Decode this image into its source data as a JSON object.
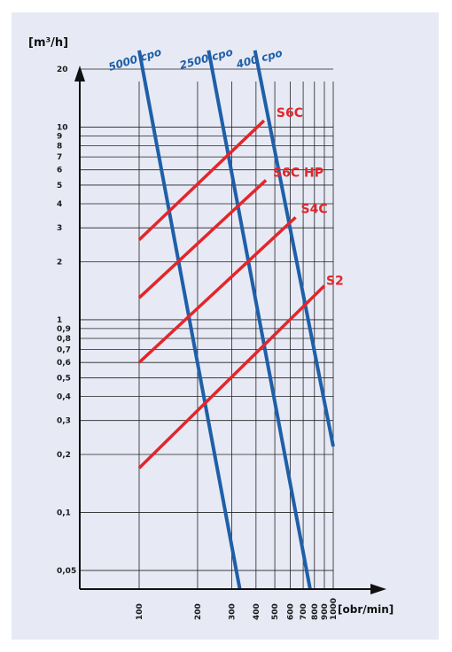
{
  "colors": {
    "background": "#e7eaf5",
    "viscosity_line": "#1f5fa8",
    "pump_line": "#e3262b",
    "grid": "#222222"
  },
  "chart_data": {
    "type": "line",
    "title": "",
    "xlabel": "[obr/min]",
    "ylabel": "[m³/h]",
    "x_scale": "log",
    "y_scale": "log",
    "xlim": [
      60,
      1000
    ],
    "ylim": [
      0.04,
      30
    ],
    "grid": true,
    "x_ticks": [
      100,
      200,
      300,
      400,
      500,
      600,
      700,
      800,
      900,
      1000
    ],
    "x_tick_labels": [
      "100",
      "200",
      "300",
      "400",
      "500",
      "600",
      "700",
      "800",
      "900",
      "1000"
    ],
    "y_ticks": [
      0.05,
      0.1,
      0.2,
      0.3,
      0.4,
      0.5,
      0.6,
      0.7,
      0.8,
      0.9,
      1,
      2,
      3,
      4,
      5,
      6,
      7,
      8,
      9,
      10,
      20
    ],
    "y_tick_labels": [
      "0,05",
      "0,1",
      "0,2",
      "0,3",
      "0,4",
      "0,5",
      "0,6",
      "0,7",
      "0,8",
      "0,9",
      "1",
      "2",
      "3",
      "4",
      "5",
      "6",
      "7",
      "8",
      "9",
      "10",
      "20"
    ],
    "viscosity_series": [
      {
        "name": "5000 cpo",
        "x": [
          100,
          330
        ],
        "y": [
          25,
          0.04
        ]
      },
      {
        "name": "2500 cpo",
        "x": [
          228,
          760
        ],
        "y": [
          25,
          0.04
        ]
      },
      {
        "name": "400 cpo",
        "x": [
          395,
          1000
        ],
        "y": [
          25,
          0.22
        ]
      }
    ],
    "pump_series": [
      {
        "name": "S6C",
        "x": [
          100,
          440
        ],
        "y": [
          2.6,
          10.8
        ]
      },
      {
        "name": "S6C HP",
        "x": [
          100,
          450
        ],
        "y": [
          1.3,
          5.3
        ]
      },
      {
        "name": "S4C",
        "x": [
          100,
          640
        ],
        "y": [
          0.6,
          3.4
        ]
      },
      {
        "name": "S2",
        "x": [
          100,
          900
        ],
        "y": [
          0.17,
          1.5
        ]
      }
    ]
  }
}
